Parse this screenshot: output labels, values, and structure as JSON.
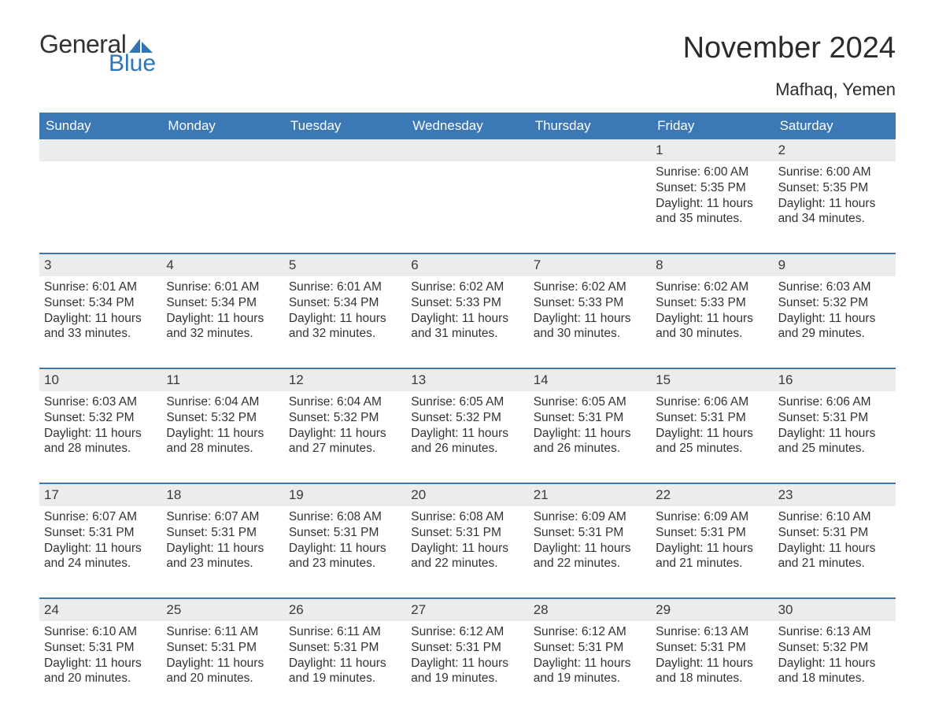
{
  "logo": {
    "text1": "General",
    "text2": "Blue"
  },
  "title": "November 2024",
  "location": "Mafhaq, Yemen",
  "colors": {
    "header_bg": "#3b78b5",
    "header_text": "#ffffff",
    "daynum_bg": "#ececec",
    "border": "#3b78b5",
    "text": "#333333",
    "logo_blue": "#2f75b5"
  },
  "dayNames": [
    "Sunday",
    "Monday",
    "Tuesday",
    "Wednesday",
    "Thursday",
    "Friday",
    "Saturday"
  ],
  "weeks": [
    [
      {
        "empty": true
      },
      {
        "empty": true
      },
      {
        "empty": true
      },
      {
        "empty": true
      },
      {
        "empty": true
      },
      {
        "n": "1",
        "sunrise": "6:00 AM",
        "sunset": "5:35 PM",
        "dl": "11 hours and 35 minutes."
      },
      {
        "n": "2",
        "sunrise": "6:00 AM",
        "sunset": "5:35 PM",
        "dl": "11 hours and 34 minutes."
      }
    ],
    [
      {
        "n": "3",
        "sunrise": "6:01 AM",
        "sunset": "5:34 PM",
        "dl": "11 hours and 33 minutes."
      },
      {
        "n": "4",
        "sunrise": "6:01 AM",
        "sunset": "5:34 PM",
        "dl": "11 hours and 32 minutes."
      },
      {
        "n": "5",
        "sunrise": "6:01 AM",
        "sunset": "5:34 PM",
        "dl": "11 hours and 32 minutes."
      },
      {
        "n": "6",
        "sunrise": "6:02 AM",
        "sunset": "5:33 PM",
        "dl": "11 hours and 31 minutes."
      },
      {
        "n": "7",
        "sunrise": "6:02 AM",
        "sunset": "5:33 PM",
        "dl": "11 hours and 30 minutes."
      },
      {
        "n": "8",
        "sunrise": "6:02 AM",
        "sunset": "5:33 PM",
        "dl": "11 hours and 30 minutes."
      },
      {
        "n": "9",
        "sunrise": "6:03 AM",
        "sunset": "5:32 PM",
        "dl": "11 hours and 29 minutes."
      }
    ],
    [
      {
        "n": "10",
        "sunrise": "6:03 AM",
        "sunset": "5:32 PM",
        "dl": "11 hours and 28 minutes."
      },
      {
        "n": "11",
        "sunrise": "6:04 AM",
        "sunset": "5:32 PM",
        "dl": "11 hours and 28 minutes."
      },
      {
        "n": "12",
        "sunrise": "6:04 AM",
        "sunset": "5:32 PM",
        "dl": "11 hours and 27 minutes."
      },
      {
        "n": "13",
        "sunrise": "6:05 AM",
        "sunset": "5:32 PM",
        "dl": "11 hours and 26 minutes."
      },
      {
        "n": "14",
        "sunrise": "6:05 AM",
        "sunset": "5:31 PM",
        "dl": "11 hours and 26 minutes."
      },
      {
        "n": "15",
        "sunrise": "6:06 AM",
        "sunset": "5:31 PM",
        "dl": "11 hours and 25 minutes."
      },
      {
        "n": "16",
        "sunrise": "6:06 AM",
        "sunset": "5:31 PM",
        "dl": "11 hours and 25 minutes."
      }
    ],
    [
      {
        "n": "17",
        "sunrise": "6:07 AM",
        "sunset": "5:31 PM",
        "dl": "11 hours and 24 minutes."
      },
      {
        "n": "18",
        "sunrise": "6:07 AM",
        "sunset": "5:31 PM",
        "dl": "11 hours and 23 minutes."
      },
      {
        "n": "19",
        "sunrise": "6:08 AM",
        "sunset": "5:31 PM",
        "dl": "11 hours and 23 minutes."
      },
      {
        "n": "20",
        "sunrise": "6:08 AM",
        "sunset": "5:31 PM",
        "dl": "11 hours and 22 minutes."
      },
      {
        "n": "21",
        "sunrise": "6:09 AM",
        "sunset": "5:31 PM",
        "dl": "11 hours and 22 minutes."
      },
      {
        "n": "22",
        "sunrise": "6:09 AM",
        "sunset": "5:31 PM",
        "dl": "11 hours and 21 minutes."
      },
      {
        "n": "23",
        "sunrise": "6:10 AM",
        "sunset": "5:31 PM",
        "dl": "11 hours and 21 minutes."
      }
    ],
    [
      {
        "n": "24",
        "sunrise": "6:10 AM",
        "sunset": "5:31 PM",
        "dl": "11 hours and 20 minutes."
      },
      {
        "n": "25",
        "sunrise": "6:11 AM",
        "sunset": "5:31 PM",
        "dl": "11 hours and 20 minutes."
      },
      {
        "n": "26",
        "sunrise": "6:11 AM",
        "sunset": "5:31 PM",
        "dl": "11 hours and 19 minutes."
      },
      {
        "n": "27",
        "sunrise": "6:12 AM",
        "sunset": "5:31 PM",
        "dl": "11 hours and 19 minutes."
      },
      {
        "n": "28",
        "sunrise": "6:12 AM",
        "sunset": "5:31 PM",
        "dl": "11 hours and 19 minutes."
      },
      {
        "n": "29",
        "sunrise": "6:13 AM",
        "sunset": "5:31 PM",
        "dl": "11 hours and 18 minutes."
      },
      {
        "n": "30",
        "sunrise": "6:13 AM",
        "sunset": "5:32 PM",
        "dl": "11 hours and 18 minutes."
      }
    ]
  ],
  "labels": {
    "sunrise": "Sunrise:",
    "sunset": "Sunset:",
    "daylight": "Daylight:"
  }
}
